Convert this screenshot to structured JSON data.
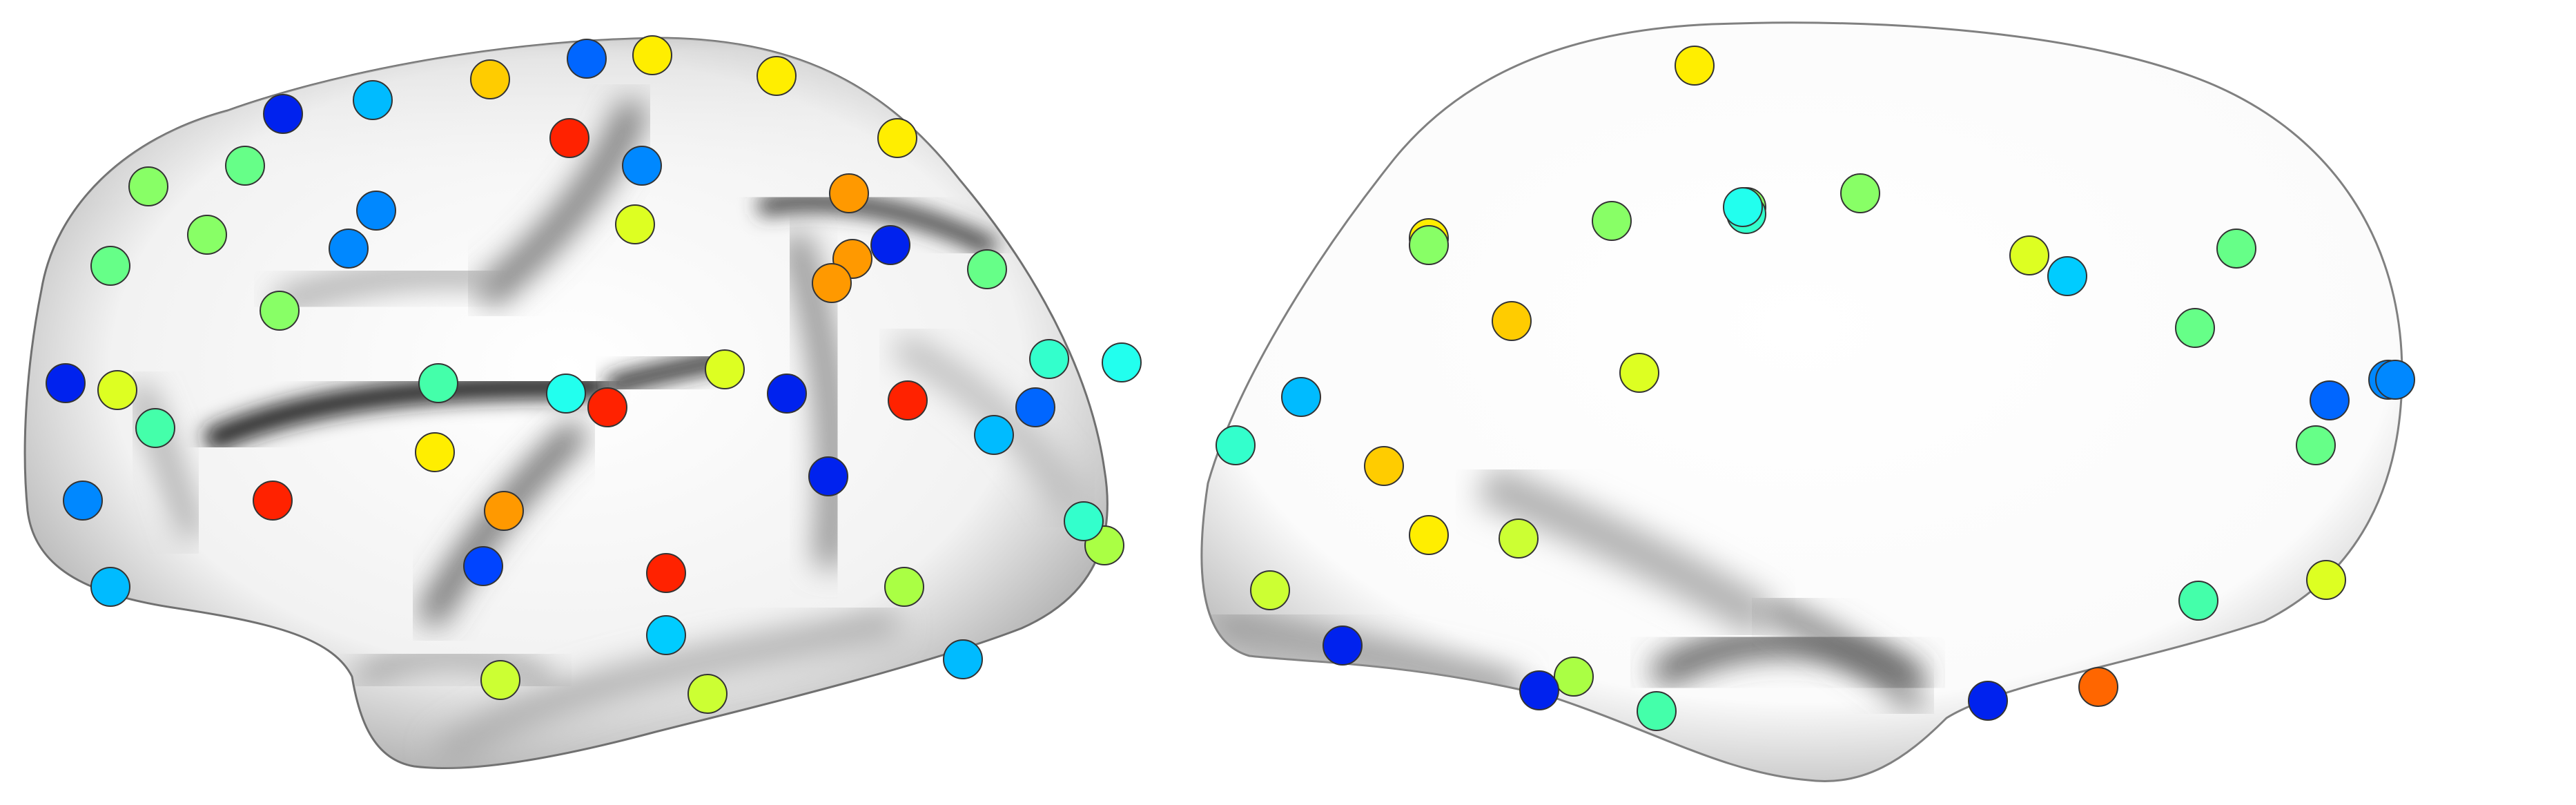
{
  "figure": {
    "views": [
      {
        "name": "left-hemisphere-lateral",
        "electrodes": [
          {
            "color": "#ff2200"
          },
          {
            "color": "#ff2200"
          },
          {
            "color": "#ff2200"
          },
          {
            "color": "#ff2200"
          },
          {
            "color": "#ff2200"
          },
          {
            "color": "#ff9900"
          },
          {
            "color": "#ff9900"
          },
          {
            "color": "#ff9900"
          },
          {
            "color": "#ff9900"
          },
          {
            "color": "#ffcc00"
          },
          {
            "color": "#ffee00"
          },
          {
            "color": "#ffee00"
          },
          {
            "color": "#ffee00"
          },
          {
            "color": "#ffee00"
          },
          {
            "color": "#ddff22"
          },
          {
            "color": "#ddff22"
          },
          {
            "color": "#ddff22"
          },
          {
            "color": "#ccff33"
          },
          {
            "color": "#ccff33"
          },
          {
            "color": "#aaff44"
          },
          {
            "color": "#aaff44"
          },
          {
            "color": "#88ff66"
          },
          {
            "color": "#88ff66"
          },
          {
            "color": "#88ff66"
          },
          {
            "color": "#66ff88"
          },
          {
            "color": "#66ff88"
          },
          {
            "color": "#66ff88"
          },
          {
            "color": "#44ffaa"
          },
          {
            "color": "#44ffaa"
          },
          {
            "color": "#33ffcc"
          },
          {
            "color": "#33ffcc"
          },
          {
            "color": "#22ffee"
          },
          {
            "color": "#22ffee"
          },
          {
            "color": "#00ccff"
          },
          {
            "color": "#00bbff"
          },
          {
            "color": "#00bbff"
          },
          {
            "color": "#00bbff"
          },
          {
            "color": "#00bbff"
          },
          {
            "color": "#0088ff"
          },
          {
            "color": "#0088ff"
          },
          {
            "color": "#0088ff"
          },
          {
            "color": "#0088ff"
          },
          {
            "color": "#0066ff"
          },
          {
            "color": "#0066ff"
          },
          {
            "color": "#0044ff"
          },
          {
            "color": "#0022ee"
          },
          {
            "color": "#0022ee"
          },
          {
            "color": "#0022ee"
          },
          {
            "color": "#0022ee"
          },
          {
            "color": "#0022ee"
          }
        ]
      },
      {
        "name": "right-hemisphere-medial",
        "electrodes": [
          {
            "color": "#ffee00"
          },
          {
            "color": "#ffee00"
          },
          {
            "color": "#ffcc00"
          },
          {
            "color": "#ffcc00"
          },
          {
            "color": "#ffee00"
          },
          {
            "color": "#ddff22"
          },
          {
            "color": "#ddff22"
          },
          {
            "color": "#ddff22"
          },
          {
            "color": "#ccff33"
          },
          {
            "color": "#ccff33"
          },
          {
            "color": "#aaff44"
          },
          {
            "color": "#88ff66"
          },
          {
            "color": "#88ff66"
          },
          {
            "color": "#88ff66"
          },
          {
            "color": "#88ff66"
          },
          {
            "color": "#66ff88"
          },
          {
            "color": "#66ff88"
          },
          {
            "color": "#66ff88"
          },
          {
            "color": "#44ffaa"
          },
          {
            "color": "#44ffaa"
          },
          {
            "color": "#33ffcc"
          },
          {
            "color": "#33ffcc"
          },
          {
            "color": "#22ffee"
          },
          {
            "color": "#00ccff"
          },
          {
            "color": "#00bbff"
          },
          {
            "color": "#0088ff"
          },
          {
            "color": "#0088ff"
          },
          {
            "color": "#0066ff"
          },
          {
            "color": "#0022ee"
          },
          {
            "color": "#0022ee"
          },
          {
            "color": "#0022ee"
          },
          {
            "color": "#ff6600"
          }
        ]
      }
    ]
  }
}
